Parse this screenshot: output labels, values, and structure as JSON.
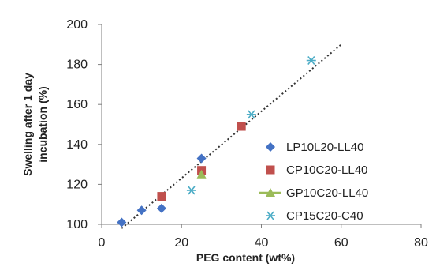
{
  "chart_data": {
    "type": "scatter",
    "xlabel": "PEG content (wt%)",
    "ylabel_lines": [
      "Swelling after 1 day",
      "incubation (%)"
    ],
    "xlim": [
      0,
      80
    ],
    "ylim": [
      100,
      200
    ],
    "x_ticks": [
      0,
      20,
      40,
      60,
      80
    ],
    "y_ticks": [
      100,
      120,
      140,
      160,
      180,
      200
    ],
    "grid": false,
    "legend_position": "right",
    "series": [
      {
        "name": "LP10L20-LL40",
        "marker": "diamond",
        "color": "#4472c4",
        "points": [
          [
            5,
            101
          ],
          [
            10,
            107
          ],
          [
            15,
            108
          ],
          [
            25,
            133
          ]
        ]
      },
      {
        "name": "CP10C20-LL40",
        "marker": "square",
        "color": "#c0504d",
        "points": [
          [
            15,
            114
          ],
          [
            25,
            127
          ],
          [
            35,
            149
          ]
        ]
      },
      {
        "name": "GP10C20-LL40",
        "marker": "triangle",
        "color": "#9bbb59",
        "points": [
          [
            25,
            125
          ]
        ]
      },
      {
        "name": "CP15C20-C40",
        "marker": "asterisk",
        "color": "#4bacc6",
        "points": [
          [
            22.5,
            117
          ],
          [
            37.5,
            155
          ],
          [
            52.5,
            182
          ]
        ]
      }
    ],
    "trendline": {
      "style": "dotted",
      "color": "#333333",
      "points": [
        [
          5,
          98
        ],
        [
          60,
          190
        ]
      ]
    }
  }
}
